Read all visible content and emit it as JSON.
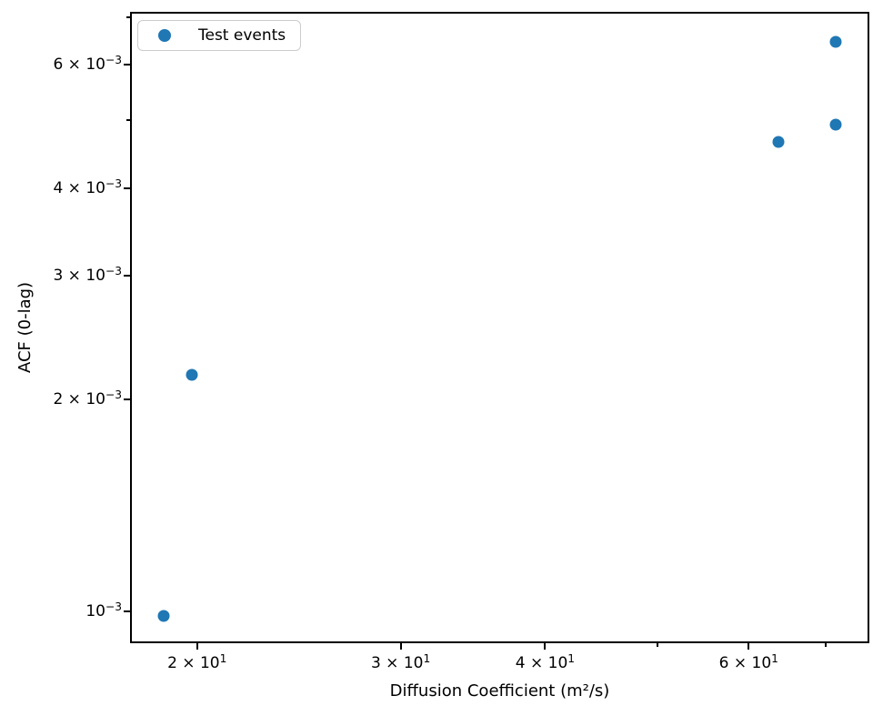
{
  "chart_data": {
    "type": "scatter",
    "title": "",
    "xlabel": "Diffusion Coefficient (m²/s)",
    "ylabel": "ACF (0-lag)",
    "xscale": "log",
    "yscale": "log",
    "xlim": [
      17.5,
      76.3
    ],
    "ylim": [
      0.0009,
      0.00713
    ],
    "grid": false,
    "legend": {
      "label": "Test events",
      "position": "upper-left"
    },
    "series": [
      {
        "name": "Test events",
        "color": "#1f77b4",
        "points": [
          {
            "x": 18.7,
            "y": 0.000985
          },
          {
            "x": 19.8,
            "y": 0.00217
          },
          {
            "x": 63.7,
            "y": 0.00465
          },
          {
            "x": 71.4,
            "y": 0.00493
          },
          {
            "x": 71.4,
            "y": 0.00646
          }
        ]
      }
    ],
    "x_ticks": [
      {
        "value": 20,
        "label": "2 × 10",
        "sup": "1",
        "major": true
      },
      {
        "value": 30,
        "label": "3 × 10",
        "sup": "1",
        "major": true
      },
      {
        "value": 40,
        "label": "4 × 10",
        "sup": "1",
        "major": true
      },
      {
        "value": 50,
        "major": false
      },
      {
        "value": 60,
        "label": "6 × 10",
        "sup": "1",
        "major": true
      },
      {
        "value": 70,
        "major": false
      }
    ],
    "y_ticks": [
      {
        "value": 0.007,
        "major": false
      },
      {
        "value": 0.006,
        "label": "6 × 10",
        "sup": "−3",
        "major": true
      },
      {
        "value": 0.005,
        "major": false
      },
      {
        "value": 0.004,
        "label": "4 × 10",
        "sup": "−3",
        "major": true
      },
      {
        "value": 0.003,
        "label": "3 × 10",
        "sup": "−3",
        "major": true
      },
      {
        "value": 0.002,
        "label": "2 × 10",
        "sup": "−3",
        "major": true
      },
      {
        "value": 0.001,
        "label": "10",
        "sup": "−3",
        "major": true
      }
    ]
  }
}
